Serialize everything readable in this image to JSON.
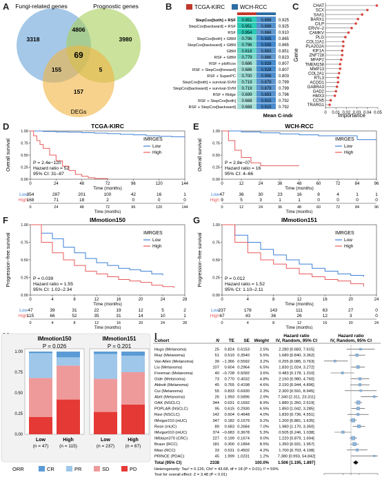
{
  "colors": {
    "tcga": "#c0392b",
    "wch": "#2e6da4",
    "low": "#3a7fd5",
    "high": "#e8585a",
    "cr": "#5b9bd5",
    "pr": "#9ec7ea",
    "sd": "#ef9a9a",
    "pd": "#e53935"
  },
  "panel_labels": [
    "A",
    "B",
    "C",
    "D",
    "E",
    "F",
    "G",
    "H",
    "I"
  ],
  "venn": {
    "sets": [
      "Fungi-related genes",
      "Prognostic genes",
      "DEGs"
    ],
    "counts": {
      "a": "3318",
      "b": "3980",
      "c": "157",
      "ab": "4806",
      "ac": "155",
      "bc": "5",
      "abc": "69"
    }
  },
  "cindex": {
    "legend": [
      "TCGA-KIRC",
      "WCH-RCC"
    ],
    "xlabel": "Mean C-index",
    "rows": [
      {
        "model": "StepCox[both] + RSF",
        "tcga": "0.951",
        "wch": "0.899",
        "mean": "0.925"
      },
      {
        "model": "StepCox[backward] + RSF",
        "tcga": "0.951",
        "wch": "0.899",
        "mean": "0.925"
      },
      {
        "model": "RSF",
        "tcga": "0.954",
        "wch": "0.866",
        "mean": "0.910"
      },
      {
        "model": "StepCox[both] + GBM",
        "tcga": "0.796",
        "wch": "0.935",
        "mean": "0.865"
      },
      {
        "model": "StepCox[backward] + GBM",
        "tcga": "0.796",
        "wch": "0.935",
        "mean": "0.865"
      },
      {
        "model": "GBM",
        "tcga": "0.818",
        "wch": "0.883",
        "mean": "0.851"
      },
      {
        "model": "RSF + GBM",
        "tcga": "0.779",
        "wch": "0.866",
        "mean": "0.823"
      },
      {
        "model": "RSF + plsRcox",
        "tcga": "0.686",
        "wch": "0.928",
        "mean": "0.807"
      },
      {
        "model": "RSF + StepCox[forward]",
        "tcga": "0.686",
        "wch": "0.928",
        "mean": "0.807"
      },
      {
        "model": "RSF + SuperPC",
        "tcga": "0.700",
        "wch": "0.906",
        "mean": "0.803"
      },
      {
        "model": "StepCox[both] + survival-SVM",
        "tcga": "0.719",
        "wch": "0.879",
        "mean": "0.799"
      },
      {
        "model": "StepCox[backward] + survival-SVM",
        "tcga": "0.719",
        "wch": "0.879",
        "mean": "0.799"
      },
      {
        "model": "RSF + Ridge",
        "tcga": "0.699",
        "wch": "0.893",
        "mean": "0.796"
      },
      {
        "model": "RSF + StepCox[both]",
        "tcga": "0.668",
        "wch": "0.915",
        "mean": "0.792"
      },
      {
        "model": "RSF + StepCox[backward]",
        "tcga": "0.668",
        "wch": "0.915",
        "mean": "0.792"
      }
    ]
  },
  "importance": {
    "ylabel": "Gene",
    "xlabel": "Importance",
    "ticks": [
      "0",
      "0.01",
      "0.02",
      "0.03",
      "0.04",
      "0.05"
    ],
    "genes": [
      {
        "name": "CHAT",
        "value": 0.049
      },
      {
        "name": "SCX",
        "value": 0.04
      },
      {
        "name": "SAA1",
        "value": 0.035
      },
      {
        "name": "BARX1",
        "value": 0.031
      },
      {
        "name": "CILP",
        "value": 0.029
      },
      {
        "name": "ERVV–2",
        "value": 0.025
      },
      {
        "name": "CAMKV",
        "value": 0.022
      },
      {
        "name": "PLG",
        "value": 0.019
      },
      {
        "name": "COL11A1",
        "value": 0.017
      },
      {
        "name": "PLA2G2A",
        "value": 0.017
      },
      {
        "name": "KIF1A",
        "value": 0.016
      },
      {
        "name": "ZNF728",
        "value": 0.016
      },
      {
        "name": "MFAP2",
        "value": 0.015
      },
      {
        "name": "TMEM158",
        "value": 0.014
      },
      {
        "name": "MMP13",
        "value": 0.014
      },
      {
        "name": "COL2A1",
        "value": 0.013
      },
      {
        "name": "RTL3",
        "value": 0.012
      },
      {
        "name": "ACOD1",
        "value": 0.012
      },
      {
        "name": "GABRA3",
        "value": 0.011
      },
      {
        "name": "GAD2",
        "value": 0.01
      },
      {
        "name": "HMX3",
        "value": 0.009
      },
      {
        "name": "CCN5",
        "value": 0.005
      },
      {
        "name": "TRARG1",
        "value": 0.004
      }
    ]
  },
  "km": [
    {
      "id": "D",
      "title": "TCGA-KIRC",
      "ylabel": "Overall survival",
      "xlabel": "Time (months)",
      "legend_title": "IMRGES",
      "stats": [
        "P = 2.4e−120",
        "Hazard ratio = 52",
        "95% CI: 31–87"
      ],
      "xticks": [
        "0",
        "24",
        "48",
        "72",
        "96",
        "120",
        "144"
      ],
      "xmax": 144,
      "risk": {
        "low": [
          "354",
          "287",
          "201",
          "100",
          "42",
          "16",
          "1"
        ],
        "high": [
          "168",
          "71",
          "18",
          "2",
          "0",
          "0",
          "0"
        ]
      },
      "low": [
        [
          0,
          1
        ],
        [
          12,
          0.99
        ],
        [
          24,
          0.98
        ],
        [
          36,
          0.975
        ],
        [
          48,
          0.965
        ],
        [
          60,
          0.955
        ],
        [
          72,
          0.945
        ],
        [
          84,
          0.93
        ],
        [
          96,
          0.92
        ],
        [
          108,
          0.9
        ],
        [
          120,
          0.89
        ],
        [
          132,
          0.88
        ],
        [
          144,
          0.88
        ]
      ],
      "high": [
        [
          0,
          1
        ],
        [
          3,
          0.9
        ],
        [
          6,
          0.8
        ],
        [
          9,
          0.72
        ],
        [
          12,
          0.64
        ],
        [
          18,
          0.5
        ],
        [
          24,
          0.38
        ],
        [
          30,
          0.27
        ],
        [
          36,
          0.18
        ],
        [
          42,
          0.1
        ],
        [
          48,
          0.06
        ],
        [
          54,
          0.03
        ],
        [
          60,
          0.015
        ],
        [
          72,
          0
        ]
      ]
    },
    {
      "id": "E",
      "title": "WCH-RCC",
      "ylabel": "Overall survival",
      "xlabel": "Time (months)",
      "legend_title": "IMRGES",
      "stats": [
        "P = 2.8e−07",
        "Hazard ratio = 16",
        "95% CI: 4–66"
      ],
      "xticks": [
        "0",
        "12",
        "24",
        "36",
        "48",
        "60",
        "72",
        "84",
        "96"
      ],
      "xmax": 96,
      "risk": {
        "low": [
          "47",
          "36",
          "30",
          "23",
          "16",
          "8",
          "4",
          "1",
          "1"
        ],
        "high": [
          "9",
          "5",
          "3",
          "1",
          "1",
          "0",
          "0",
          "0",
          "0"
        ]
      },
      "low": [
        [
          0,
          1
        ],
        [
          12,
          0.98
        ],
        [
          24,
          0.96
        ],
        [
          36,
          0.94
        ],
        [
          48,
          0.92
        ],
        [
          60,
          0.9
        ],
        [
          72,
          0.9
        ],
        [
          84,
          0.82
        ],
        [
          96,
          0.82
        ]
      ],
      "high": [
        [
          0,
          1
        ],
        [
          4,
          0.8
        ],
        [
          8,
          0.6
        ],
        [
          12,
          0.45
        ],
        [
          18,
          0.34
        ],
        [
          24,
          0.28
        ],
        [
          36,
          0.28
        ],
        [
          48,
          0.28
        ]
      ]
    },
    {
      "id": "F",
      "title": "IMmotion150",
      "ylabel": "Progression−free survival",
      "xlabel": "Time (months)",
      "legend_title": "IMRGES",
      "stats": [
        "P = 0.039",
        "Hazard ratio = 1.55",
        "95% CI: 1.02–2.34"
      ],
      "xticks": [
        "0",
        "4",
        "8",
        "12",
        "16",
        "20",
        "24",
        "28"
      ],
      "xmax": 28,
      "risk": {
        "low": [
          "47",
          "39",
          "31",
          "22",
          "19",
          "12",
          "5",
          "2"
        ],
        "high": [
          "115",
          "66",
          "52",
          "35",
          "31",
          "14",
          "10",
          "1"
        ]
      },
      "low": [
        [
          0,
          1
        ],
        [
          2,
          0.88
        ],
        [
          4,
          0.8
        ],
        [
          6,
          0.68
        ],
        [
          8,
          0.6
        ],
        [
          10,
          0.52
        ],
        [
          12,
          0.46
        ],
        [
          14,
          0.42
        ],
        [
          16,
          0.38
        ],
        [
          18,
          0.36
        ],
        [
          20,
          0.34
        ],
        [
          22,
          0.3
        ],
        [
          24,
          0.28
        ]
      ],
      "high": [
        [
          0,
          1
        ],
        [
          2,
          0.75
        ],
        [
          4,
          0.6
        ],
        [
          6,
          0.5
        ],
        [
          8,
          0.42
        ],
        [
          10,
          0.34
        ],
        [
          12,
          0.3
        ],
        [
          14,
          0.26
        ],
        [
          16,
          0.22
        ],
        [
          18,
          0.2
        ],
        [
          20,
          0.18
        ],
        [
          22,
          0.14
        ],
        [
          24,
          0.12
        ],
        [
          26,
          0.1
        ]
      ]
    },
    {
      "id": "G",
      "title": "IMmotion151",
      "ylabel": "Progression−free survival",
      "xlabel": "Time (months)",
      "legend_title": "IMRGES",
      "stats": [
        "P = 0.012",
        "Hazard ratio = 1.52",
        "95% CI: 1.10–2.11"
      ],
      "xticks": [
        "0",
        "4",
        "8",
        "12",
        "16",
        "20",
        "24"
      ],
      "xmax": 24,
      "risk": {
        "low": [
          "237",
          "178",
          "143",
          "111",
          "63",
          "27",
          "0"
        ],
        "high": [
          "67",
          "43",
          "36",
          "26",
          "12",
          "3",
          "0"
        ]
      },
      "low": [
        [
          0,
          1
        ],
        [
          2,
          0.85
        ],
        [
          4,
          0.75
        ],
        [
          6,
          0.65
        ],
        [
          8,
          0.57
        ],
        [
          10,
          0.5
        ],
        [
          12,
          0.44
        ],
        [
          14,
          0.38
        ],
        [
          16,
          0.34
        ],
        [
          18,
          0.3
        ],
        [
          20,
          0.28
        ],
        [
          22,
          0.26
        ]
      ],
      "high": [
        [
          0,
          1
        ],
        [
          2,
          0.75
        ],
        [
          4,
          0.6
        ],
        [
          6,
          0.5
        ],
        [
          8,
          0.44
        ],
        [
          10,
          0.38
        ],
        [
          12,
          0.3
        ],
        [
          14,
          0.26
        ],
        [
          16,
          0.22
        ],
        [
          18,
          0.2
        ],
        [
          20,
          0.16
        ],
        [
          22,
          0.12
        ]
      ]
    }
  ],
  "orr": {
    "legend_title": "ORR",
    "categories_legend": [
      "CR",
      "PR",
      "SD",
      "PD"
    ],
    "yticks": [
      "0.00",
      "0.25",
      "0.50",
      "0.75",
      "1.00"
    ],
    "panels": [
      {
        "title": "IMmotion150",
        "p": "P = 0.026",
        "groups": [
          {
            "label": "Low",
            "n": "(n = 47)",
            "cr": 0.02,
            "pr": 0.3,
            "sd": 0.47,
            "pd": 0.21
          },
          {
            "label": "High",
            "n": "(n = 115)",
            "cr": 0.07,
            "pr": 0.1,
            "sd": 0.41,
            "pd": 0.42
          }
        ]
      },
      {
        "title": "IMmotion151",
        "p": "P = 0.201",
        "groups": [
          {
            "label": "Low",
            "n": "(n = 237)",
            "cr": 0.03,
            "pr": 0.3,
            "sd": 0.4,
            "pd": 0.27
          },
          {
            "label": "High",
            "n": "(n = 67)",
            "cr": 0.05,
            "pr": 0.2,
            "sd": 0.39,
            "pd": 0.36
          }
        ]
      }
    ]
  },
  "forest": {
    "headers": {
      "cohort": "Cohort",
      "n": "N",
      "te": "TE",
      "se": "SE",
      "weight": "Weight",
      "hr": "Hazard ratio",
      "hr_sub": "IV, Random, 95% CI",
      "plot": "Hazard ratio",
      "plot_sub": "IV, Random, 95% CI"
    },
    "xticks": [
      "0.1",
      "0.5",
      "1",
      "2",
      "10"
    ],
    "rows": [
      {
        "cohort": "Hugo (Melanoma)",
        "n": "25",
        "te": "0.824",
        "se": "0.6153",
        "w": "2.5%",
        "ci": "2.280 [0.683, 7.615]",
        "hr": 2.28,
        "lo": 0.683,
        "hi": 7.615
      },
      {
        "cohort": "Riaz (Melanoma)",
        "n": "51",
        "te": "0.519",
        "se": "0.3540",
        "w": "5.5%",
        "ci": "1.680 [0.840, 3.362]",
        "hr": 1.68,
        "lo": 0.84,
        "hi": 3.362
      },
      {
        "cohort": "Van Allen (Melanoma)",
        "n": "39",
        "te": "−1.366",
        "se": "0.5592",
        "w": "3.2%",
        "ci": "0.255 [0.085, 0.763]",
        "hr": 0.255,
        "lo": 0.085,
        "hi": 0.763
      },
      {
        "cohort": "Liu (Melanoma)",
        "n": "107",
        "te": "0.604",
        "se": "0.2964",
        "w": "6.5%",
        "ci": "1.830 [1.024, 3.272]",
        "hr": 1.83,
        "lo": 1.024,
        "hi": 3.272
      },
      {
        "cohort": "Freeman (Melanoma)",
        "n": "40",
        "te": "−0.728",
        "se": "0.5092",
        "w": "3.6%",
        "ci": "0.483 [0.178, 1.310]",
        "hr": 0.483,
        "lo": 0.178,
        "hi": 1.31
      },
      {
        "cohort": "Gide (Melanoma)",
        "n": "73",
        "te": "0.770",
        "se": "0.4032",
        "w": "4.8%",
        "ci": "2.160 [0.980, 4.760]",
        "hr": 2.16,
        "lo": 0.98,
        "hi": 4.76
      },
      {
        "cohort": "Abbott (Melanoma)",
        "n": "45",
        "te": "0.765",
        "se": "0.4198",
        "w": "4.6%",
        "ci": "2.150 [0.944, 4.896]",
        "hr": 2.15,
        "lo": 0.944,
        "hi": 4.896
      },
      {
        "cohort": "Cui (Melanoma)",
        "n": "55",
        "te": "0.833",
        "se": "0.6930",
        "w": "2.3%",
        "ci": "2.300 [0.591, 8.945]",
        "hr": 2.3,
        "lo": 0.591,
        "hi": 8.945
      },
      {
        "cohort": "Abril (Melanoma)",
        "n": "26",
        "te": "1.993",
        "se": "0.5896",
        "w": "2.9%",
        "ci": "7.340 [2.311, 23.311]",
        "hr": 7.34,
        "lo": 2.311,
        "hi": 23.311
      },
      {
        "cohort": "OAK (NSCLC)",
        "n": "344",
        "te": "0.631",
        "se": "0.1692",
        "w": "8.9%",
        "ci": "1.880 [1.350, 2.619]",
        "hr": 1.88,
        "lo": 1.35,
        "hi": 2.619
      },
      {
        "cohort": "POPLAR (NSCLC)",
        "n": "95",
        "te": "0.615",
        "se": "0.2930",
        "w": "6.5%",
        "ci": "1.850 [1.042, 3.285]",
        "hr": 1.85,
        "lo": 1.042,
        "hi": 3.285
      },
      {
        "cohort": "Ravi (NSCLC)",
        "n": "142",
        "te": "0.604",
        "se": "0.4648",
        "w": "4.0%",
        "ci": "1.830 [0.736, 4.551]",
        "hr": 1.83,
        "lo": 0.736,
        "hi": 4.551
      },
      {
        "cohort": "IMvigor210 (mUC)",
        "n": "347",
        "te": "0.182",
        "se": "0.1579",
        "w": "9.2%",
        "ci": "1.200 [0.881, 1.635]",
        "hr": 1.2,
        "lo": 0.881,
        "hi": 1.635
      },
      {
        "cohort": "Rose (mUC)",
        "n": "89",
        "te": "0.683",
        "se": "0.2684",
        "w": "7.0%",
        "ci": "1.980 [1.170, 3.350]",
        "hr": 1.98,
        "lo": 1.17,
        "hi": 3.35
      },
      {
        "cohort": "IMvigor010 (mUC)",
        "n": "374",
        "te": "−0.683",
        "se": "0.3678",
        "w": "5.3%",
        "ci": "0.505 [0.246, 1.038]",
        "hr": 0.505,
        "lo": 0.246,
        "hi": 1.038
      },
      {
        "cohort": "IMblaze370 (CRC)",
        "n": "227",
        "te": "0.199",
        "se": "0.1674",
        "w": "9.0%",
        "ci": "1.220 [0.879, 1.694]",
        "hr": 1.22,
        "lo": 0.879,
        "hi": 1.694
      },
      {
        "cohort": "Braun (RCC)",
        "n": "181",
        "te": "0.300",
        "se": "0.1894",
        "w": "8.5%",
        "ci": "1.350 [0.931, 1.957]",
        "hr": 1.35,
        "lo": 0.931,
        "hi": 1.957
      },
      {
        "cohort": "Miao (RCC)",
        "n": "33",
        "te": "0.531",
        "se": "0.4502",
        "w": "4.2%",
        "ci": "1.700 [0.703, 4.108]",
        "hr": 1.7,
        "lo": 0.703,
        "hi": 4.108
      },
      {
        "cohort": "PRINCE (PDAC)",
        "n": "45",
        "te": "1.999",
        "se": "1.0231",
        "w": "1.2%",
        "ci": "7.380 [0.993, 54.842]",
        "hr": 7.38,
        "lo": 0.993,
        "hi": 54.842
      }
    ],
    "total": {
      "cohort": "Total (95% CI)",
      "n": "2338",
      "w": "100.0%",
      "ci": "1.506 [1.195, 1.897]",
      "hr": 1.506,
      "lo": 1.195,
      "hi": 1.897
    },
    "footer": [
      "Heterogeneity: Tau² = 0.126; Chi² = 43.68, df = 18 (P < 0.01); I² = 59%",
      "Test for overall effect: Z = 3.48 (P < 0.01)"
    ]
  }
}
